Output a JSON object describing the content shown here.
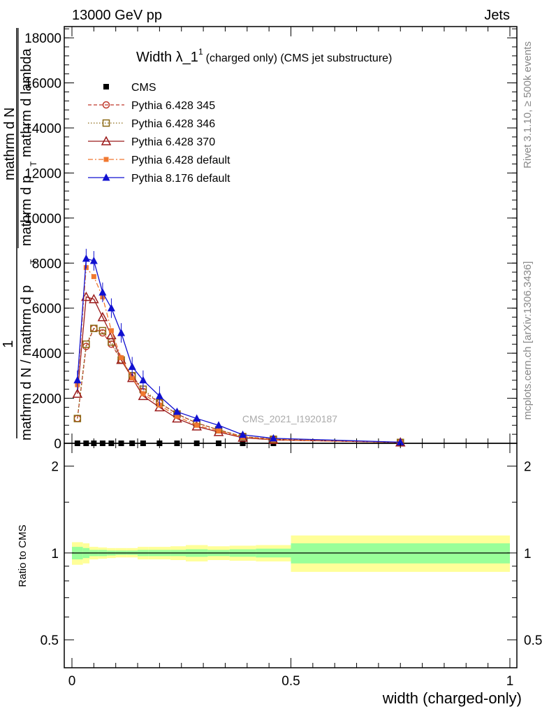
{
  "header": {
    "left": "13000 GeV pp",
    "right": "Jets"
  },
  "side_labels": {
    "rivet": "Rivet 3.1.10, ≥ 500k events",
    "mcplots": "mcplots.cern.ch [arXiv:1306.3436]"
  },
  "watermark": "CMS_2021_I1920187",
  "chart_data": [
    {
      "type": "line",
      "title": "Width λ_1",
      "title_sup": "1",
      "subtitle": "(charged only) (CMS jet substructure)",
      "ylabel_parts": [
        "1",
        "mathrm d N / mathrm d p",
        "T",
        "mathrm d N",
        "mathrm d p",
        "T",
        "mathrm d lambda"
      ],
      "xlim": [
        0,
        1
      ],
      "ylim": [
        0,
        18500
      ],
      "yticks": [
        0,
        2000,
        4000,
        6000,
        8000,
        10000,
        12000,
        14000,
        16000,
        18000
      ],
      "ytick_labels": [
        "0",
        "2000",
        "4000",
        "6000",
        "8000",
        "10000",
        "12000",
        "14000",
        "16000",
        "18000"
      ],
      "x_centers": [
        0.0125,
        0.0325,
        0.05,
        0.07,
        0.09,
        0.1125,
        0.1375,
        0.1625,
        0.2,
        0.24,
        0.285,
        0.335,
        0.39,
        0.46,
        0.75
      ],
      "series": [
        {
          "name": "CMS",
          "color": "#000000",
          "marker": "square",
          "line": "none",
          "values": [
            0,
            0,
            0,
            0,
            0,
            0,
            0,
            0,
            0,
            0,
            0,
            0,
            0,
            0,
            0
          ]
        },
        {
          "name": "Pythia 6.428 345",
          "color": "#c0392b",
          "marker": "circle-open",
          "line": "dashed",
          "values": [
            1100,
            4300,
            5100,
            4900,
            4400,
            3700,
            3000,
            2300,
            1800,
            1300,
            900,
            600,
            300,
            180,
            40
          ]
        },
        {
          "name": "Pythia 6.428 346",
          "color": "#8b6914",
          "marker": "square-open",
          "line": "dotted",
          "values": [
            1100,
            4400,
            5100,
            5000,
            4500,
            3700,
            3000,
            2400,
            1800,
            1300,
            900,
            600,
            300,
            180,
            40
          ]
        },
        {
          "name": "Pythia 6.428 370",
          "color": "#9b1b1b",
          "marker": "triangle-open",
          "line": "solid",
          "values": [
            2200,
            6500,
            6400,
            5600,
            4800,
            3700,
            2900,
            2100,
            1600,
            1100,
            750,
            500,
            250,
            150,
            40
          ]
        },
        {
          "name": "Pythia 6.428 default",
          "color": "#f07830",
          "marker": "square-filled",
          "line": "dashdot",
          "values": [
            2600,
            7800,
            7400,
            6500,
            5000,
            3800,
            2900,
            2200,
            1700,
            1200,
            800,
            550,
            280,
            160,
            40
          ]
        },
        {
          "name": "Pythia 8.176 default",
          "color": "#1010d0",
          "marker": "triangle-filled",
          "line": "solid",
          "values": [
            2800,
            8200,
            8100,
            6700,
            6000,
            4900,
            3400,
            2800,
            2100,
            1400,
            1100,
            800,
            380,
            220,
            50
          ]
        }
      ]
    },
    {
      "type": "area",
      "ylabel": "Ratio to CMS",
      "xlabel": "width (charged-only)",
      "xlim": [
        0,
        1
      ],
      "ylim": [
        0.4,
        2.4
      ],
      "ytick_labels": [
        "0.5",
        "1",
        "2"
      ],
      "ytick_values": [
        0.5,
        1,
        2
      ],
      "xtick_labels": [
        "0",
        "0.5",
        "1"
      ],
      "xtick_values": [
        0,
        0.5,
        1
      ],
      "bins": [
        {
          "x0": 0.0,
          "x1": 0.025,
          "inner": [
            0.95,
            1.05
          ],
          "outer": [
            0.91,
            1.09
          ]
        },
        {
          "x0": 0.025,
          "x1": 0.04,
          "inner": [
            0.96,
            1.04
          ],
          "outer": [
            0.92,
            1.08
          ]
        },
        {
          "x0": 0.04,
          "x1": 0.06,
          "inner": [
            0.975,
            1.025
          ],
          "outer": [
            0.95,
            1.05
          ]
        },
        {
          "x0": 0.06,
          "x1": 0.08,
          "inner": [
            0.975,
            1.025
          ],
          "outer": [
            0.955,
            1.045
          ]
        },
        {
          "x0": 0.08,
          "x1": 0.1,
          "inner": [
            0.98,
            1.02
          ],
          "outer": [
            0.96,
            1.04
          ]
        },
        {
          "x0": 0.1,
          "x1": 0.125,
          "inner": [
            0.985,
            1.02
          ],
          "outer": [
            0.965,
            1.04
          ]
        },
        {
          "x0": 0.125,
          "x1": 0.15,
          "inner": [
            0.985,
            1.02
          ],
          "outer": [
            0.965,
            1.04
          ]
        },
        {
          "x0": 0.15,
          "x1": 0.175,
          "inner": [
            0.975,
            1.025
          ],
          "outer": [
            0.95,
            1.05
          ]
        },
        {
          "x0": 0.175,
          "x1": 0.225,
          "inner": [
            0.975,
            1.025
          ],
          "outer": [
            0.95,
            1.05
          ]
        },
        {
          "x0": 0.225,
          "x1": 0.26,
          "inner": [
            0.975,
            1.025
          ],
          "outer": [
            0.945,
            1.055
          ]
        },
        {
          "x0": 0.26,
          "x1": 0.31,
          "inner": [
            0.97,
            1.03
          ],
          "outer": [
            0.935,
            1.065
          ]
        },
        {
          "x0": 0.31,
          "x1": 0.36,
          "inner": [
            0.975,
            1.025
          ],
          "outer": [
            0.945,
            1.055
          ]
        },
        {
          "x0": 0.36,
          "x1": 0.42,
          "inner": [
            0.97,
            1.03
          ],
          "outer": [
            0.94,
            1.06
          ]
        },
        {
          "x0": 0.42,
          "x1": 0.5,
          "inner": [
            0.965,
            1.035
          ],
          "outer": [
            0.935,
            1.065
          ]
        },
        {
          "x0": 0.5,
          "x1": 1.0,
          "inner": [
            0.92,
            1.08
          ],
          "outer": [
            0.86,
            1.15
          ]
        }
      ]
    }
  ]
}
